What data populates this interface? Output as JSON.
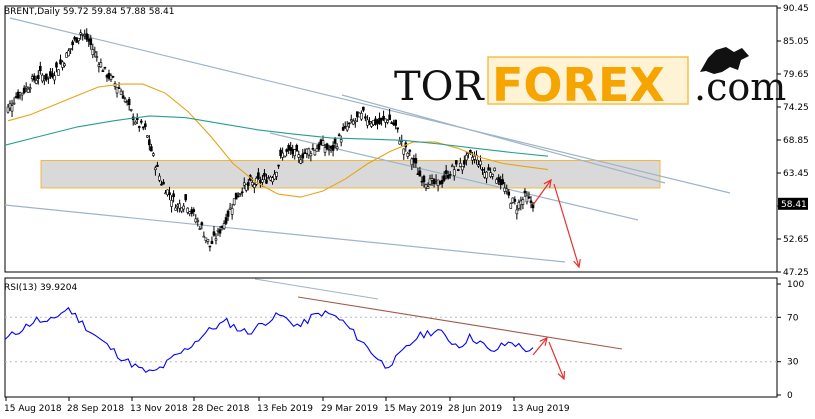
{
  "main_header": "BRENT,Daily  59.72 59.84 57.88 58.41",
  "rsi_header": "RSI(13) 39.9204",
  "watermark": {
    "part1": "TOR",
    "part2": "FOREX",
    "part3": ".com"
  },
  "colors": {
    "candles": "#000000",
    "ma_fast": "#e8a317",
    "ma_slow": "#2a9d8f",
    "trend": "#9fb4c8",
    "zone": "#cccccc",
    "zone_border": "#f0b840",
    "forecast": "#e83030",
    "rsi": "#0000ff",
    "rsi_trend": "#a05a4a",
    "watermark_accent": "#f5a400"
  },
  "chart_data": [
    {
      "type": "candlestick",
      "title": "BRENT,Daily",
      "ohlc_last": {
        "open": 59.72,
        "high": 59.84,
        "low": 57.88,
        "close": 58.41
      },
      "price_label": "58.41",
      "y_ticks": [
        "90.45",
        "85.05",
        "79.65",
        "74.25",
        "68.85",
        "63.45",
        "58.05",
        "52.65",
        "47.25"
      ],
      "x_ticks": [
        "15 Aug 2018",
        "28 Sep 2018",
        "13 Nov 2018",
        "28 Dec 2018",
        "13 Feb 2019",
        "29 Mar 2019",
        "15 May 2019",
        "28 Jun 2019",
        "13 Aug 2019"
      ],
      "ylim": [
        47.25,
        90.45
      ],
      "closes_approx": [
        74.0,
        76.0,
        77.0,
        78.5,
        79.5,
        79.0,
        80.5,
        82.0,
        84.5,
        86.5,
        85.0,
        82.5,
        80.0,
        78.5,
        77.0,
        74.0,
        71.5,
        70.5,
        66.0,
        62.0,
        60.0,
        58.0,
        59.0,
        56.5,
        54.5,
        51.5,
        53.5,
        56.0,
        59.0,
        61.0,
        61.5,
        62.0,
        62.5,
        63.5,
        66.5,
        67.0,
        66.0,
        67.0,
        67.5,
        68.0,
        67.0,
        69.0,
        71.0,
        72.0,
        73.0,
        72.0,
        71.5,
        72.5,
        71.0,
        67.5,
        66.0,
        63.0,
        62.0,
        61.5,
        62.5,
        64.0,
        64.5,
        66.0,
        66.0,
        63.5,
        64.0,
        62.0,
        59.5,
        58.0,
        59.5,
        58.41
      ],
      "support_zone": [
        61.0,
        65.5
      ],
      "moving_averages": [
        {
          "values": [
            72.0,
            73.0,
            74.5,
            76.0,
            77.5,
            78.0,
            78.0,
            76.5,
            73.5,
            69.5,
            65.0,
            62.0,
            60.0,
            59.5,
            60.5,
            62.5,
            65.0,
            67.0,
            68.5,
            68.5,
            67.5,
            66.0,
            65.0,
            64.5,
            64.0
          ]
        },
        {
          "values": [
            68.0,
            69.5,
            71.0,
            72.0,
            72.8,
            72.5,
            71.5,
            70.5,
            69.8,
            69.2,
            69.0,
            68.8,
            68.2,
            67.5,
            66.8,
            66.2
          ]
        }
      ]
    },
    {
      "type": "line",
      "title": "RSI(13)",
      "current_value": 39.9204,
      "y_ticks": [
        "100",
        "70",
        "30",
        "0"
      ],
      "ylim": [
        0,
        100
      ],
      "values_approx": [
        50,
        56,
        62,
        68,
        64,
        72,
        78,
        68,
        58,
        50,
        42,
        34,
        28,
        22,
        20,
        26,
        34,
        40,
        48,
        56,
        62,
        66,
        60,
        56,
        62,
        68,
        72,
        66,
        62,
        70,
        74,
        72,
        66,
        56,
        46,
        36,
        26,
        32,
        42,
        52,
        56,
        58,
        50,
        44,
        52,
        48,
        38,
        44,
        48,
        42,
        40
      ]
    }
  ]
}
